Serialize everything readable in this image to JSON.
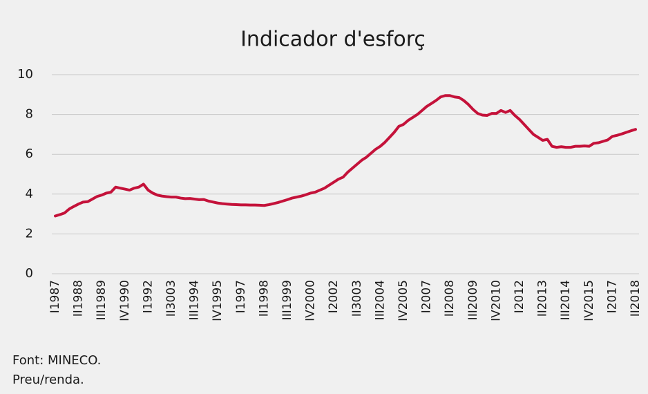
{
  "chart_data": {
    "type": "line",
    "title": "Indicador d'esforç",
    "categories": [
      "I1987",
      null,
      null,
      null,
      null,
      "II1988",
      null,
      null,
      null,
      null,
      "III1989",
      null,
      null,
      null,
      null,
      "IV1990",
      null,
      null,
      null,
      null,
      "I1992",
      null,
      null,
      null,
      null,
      "II3003",
      null,
      null,
      null,
      null,
      "III1994",
      null,
      null,
      null,
      null,
      "IV1995",
      null,
      null,
      null,
      null,
      "I1997",
      null,
      null,
      null,
      null,
      "II1998",
      null,
      null,
      null,
      null,
      "III1999",
      null,
      null,
      null,
      null,
      "IV2000",
      null,
      null,
      null,
      null,
      "I2002",
      null,
      null,
      null,
      null,
      "II3003",
      null,
      null,
      null,
      null,
      "III2004",
      null,
      null,
      null,
      null,
      "IV2005",
      null,
      null,
      null,
      null,
      "I2007",
      null,
      null,
      null,
      null,
      "II2008",
      null,
      null,
      null,
      null,
      "III2009",
      null,
      null,
      null,
      null,
      "IV2010",
      null,
      null,
      null,
      null,
      "I2012",
      null,
      null,
      null,
      null,
      "II2013",
      null,
      null,
      null,
      null,
      "III2014",
      null,
      null,
      null,
      null,
      "IV2015",
      null,
      null,
      null,
      null,
      "I2017",
      null,
      null,
      null,
      null,
      "II2018"
    ],
    "series": [
      {
        "color": "#c4123a",
        "values": [
          2.9,
          2.97,
          3.05,
          3.25,
          3.38,
          3.5,
          3.6,
          3.62,
          3.75,
          3.88,
          3.95,
          4.05,
          4.1,
          4.35,
          4.3,
          4.25,
          4.2,
          4.3,
          4.35,
          4.5,
          4.2,
          4.05,
          3.95,
          3.9,
          3.87,
          3.85,
          3.85,
          3.8,
          3.77,
          3.78,
          3.75,
          3.72,
          3.73,
          3.65,
          3.6,
          3.55,
          3.52,
          3.5,
          3.48,
          3.47,
          3.46,
          3.46,
          3.45,
          3.45,
          3.44,
          3.43,
          3.47,
          3.52,
          3.58,
          3.65,
          3.72,
          3.8,
          3.85,
          3.9,
          3.97,
          4.05,
          4.1,
          4.2,
          4.3,
          4.45,
          4.6,
          4.75,
          4.85,
          5.1,
          5.3,
          5.5,
          5.7,
          5.85,
          6.05,
          6.25,
          6.4,
          6.6,
          6.85,
          7.1,
          7.4,
          7.5,
          7.7,
          7.85,
          8.0,
          8.2,
          8.4,
          8.55,
          8.7,
          8.88,
          8.95,
          8.95,
          8.88,
          8.85,
          8.7,
          8.5,
          8.25,
          8.05,
          7.97,
          7.95,
          8.05,
          8.05,
          8.2,
          8.1,
          8.2,
          7.95,
          7.75,
          7.5,
          7.25,
          7.0,
          6.85,
          6.7,
          6.75,
          6.4,
          6.35,
          6.38,
          6.35,
          6.35,
          6.4,
          6.4,
          6.42,
          6.4,
          6.55,
          6.58,
          6.65,
          6.72,
          6.9,
          6.95,
          7.02,
          7.1,
          7.18,
          7.25
        ]
      }
    ],
    "ylim": [
      0,
      10
    ],
    "yticks": [
      0,
      2,
      4,
      6,
      8,
      10
    ],
    "grid": true,
    "notes": [
      "Font: MINECO.",
      "Preu/renda."
    ]
  }
}
